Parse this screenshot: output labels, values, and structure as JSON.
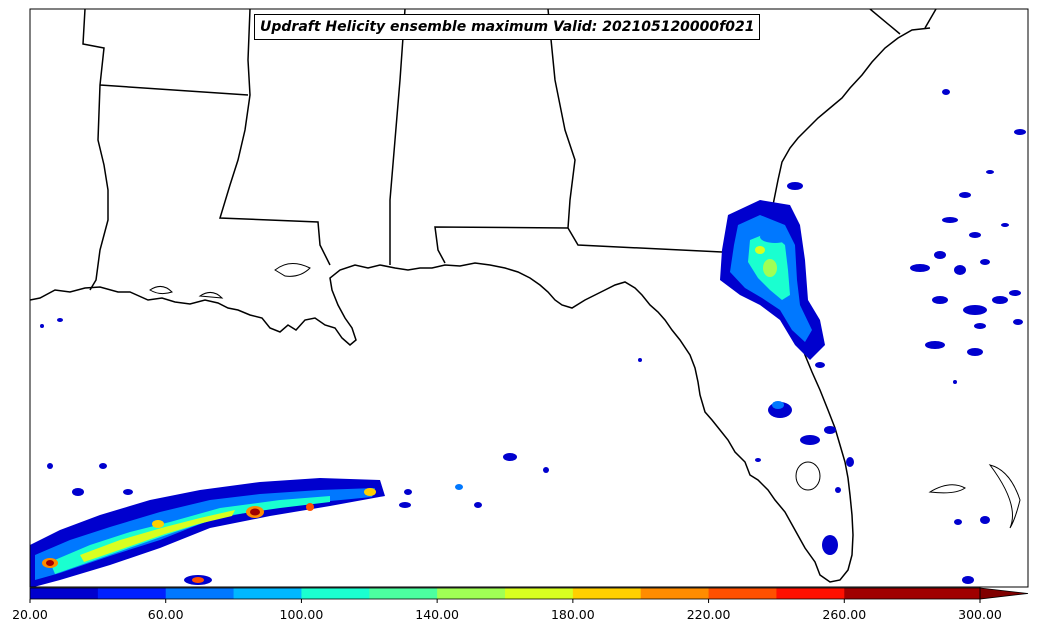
{
  "title": "Updraft Helicity ensemble maximum Valid: 202105120000f021",
  "colorbar": {
    "ticks": [
      "20.00",
      "60.00",
      "100.00",
      "140.00",
      "180.00",
      "220.00",
      "260.00",
      "300.00"
    ],
    "tick_values": [
      20,
      60,
      100,
      140,
      180,
      220,
      260,
      300
    ],
    "min": 20,
    "max": 313,
    "extend": "max",
    "colors": [
      "#0000ce",
      "#0020ff",
      "#0078ff",
      "#00b8ff",
      "#1affd0",
      "#4cffa0",
      "#a0ff55",
      "#d8ff20",
      "#ffd000",
      "#ff8c00",
      "#ff5000",
      "#ff1000",
      "#a00000",
      "#800000"
    ]
  },
  "map": {
    "region": "Southeastern United States and Gulf of Mexico",
    "features": [
      "state-borders",
      "coastlines",
      "lakes"
    ]
  }
}
